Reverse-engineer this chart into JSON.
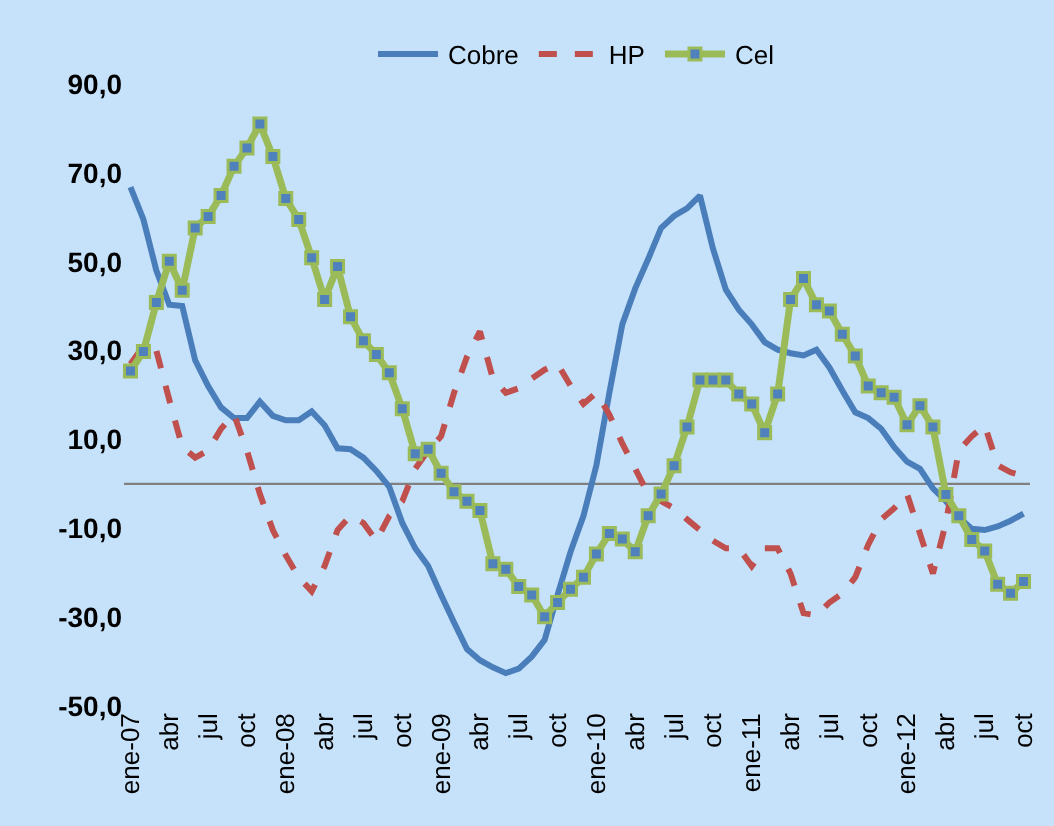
{
  "chart_data": {
    "type": "line",
    "categories": [
      "ene-07",
      null,
      null,
      "abr",
      null,
      null,
      "jul",
      null,
      null,
      "oct",
      null,
      null,
      "ene-08",
      null,
      null,
      "abr",
      null,
      null,
      "jul",
      null,
      null,
      "oct",
      null,
      null,
      "ene-09",
      null,
      null,
      "abr",
      null,
      null,
      "jul",
      null,
      null,
      "oct",
      null,
      null,
      "ene-10",
      null,
      null,
      "abr",
      null,
      null,
      "jul",
      null,
      null,
      "oct",
      null,
      null,
      "ene-11",
      null,
      null,
      "abr",
      null,
      null,
      "jul",
      null,
      null,
      "oct",
      null,
      null,
      "ene-12",
      null,
      null,
      "abr",
      null,
      null,
      "jul",
      null,
      null,
      "oct"
    ],
    "series": [
      {
        "name": "Cobre",
        "color": "#4a7ebb",
        "line_style": "solid",
        "marker": "none",
        "values": [
          66.8,
          59.5,
          48,
          40.3,
          40,
          27.8,
          22,
          17.2,
          14.8,
          14.8,
          18.5,
          15.3,
          14.3,
          14.3,
          16.3,
          13.2,
          8,
          7.8,
          5.9,
          2.9,
          -0.7,
          -8.8,
          -14.5,
          -18.5,
          -25,
          -31.2,
          -37.2,
          -39.7,
          -41.3,
          -42.6,
          -41.6,
          -38.9,
          -35.1,
          -25,
          -15.3,
          -7.2,
          4.2,
          20.5,
          35.9,
          44,
          50.6,
          57.6,
          60.3,
          62,
          64.9,
          53,
          43.7,
          39.2,
          35.9,
          31.9,
          30.2,
          29.4,
          28.9,
          30.2,
          26.2,
          21,
          16.1,
          14.8,
          12.4,
          8.3,
          5,
          3.4,
          -1,
          -3.9,
          -7.5,
          -10.1,
          -10.4,
          -9.6,
          -8.3,
          -6.7
        ]
      },
      {
        "name": "HP",
        "color": "#c0504d",
        "line_style": "dashed",
        "marker": "none",
        "values": [
          27,
          31,
          30,
          18.9,
          8.3,
          5.9,
          7.5,
          12.4,
          15.6,
          7.5,
          -2.3,
          -10.4,
          -16.1,
          -21,
          -24.2,
          -18.5,
          -10.4,
          -7.2,
          -8.8,
          -12.8,
          -7.2,
          -3.9,
          3.4,
          7.5,
          10.7,
          20.5,
          28.6,
          34.3,
          23.7,
          20.5,
          21.5,
          23.7,
          25.7,
          27,
          22.1,
          18,
          20.5,
          15.6,
          9.1,
          3.4,
          -2.3,
          -3.9,
          -5.5,
          -8,
          -10.4,
          -12.8,
          -14.5,
          -14.5,
          -18.5,
          -14.5,
          -14.5,
          -20.2,
          -29.1,
          -29.6,
          -26.7,
          -24.7,
          -21,
          -13.7,
          -8,
          -5.5,
          -2.3,
          -11.2,
          -20.2,
          -8.8,
          7.5,
          10.7,
          13.2,
          4.2,
          2.6,
          1.8
        ]
      },
      {
        "name": "Cel",
        "color": "#9bbb59",
        "line_style": "solid",
        "marker": "square",
        "values": [
          25.4,
          29.8,
          40.8,
          50.1,
          43.6,
          57.6,
          60.2,
          64.9,
          71.5,
          75.6,
          81,
          73.7,
          64.2,
          59.5,
          50.9,
          41.5,
          48.9,
          37.6,
          32.2,
          29.1,
          25,
          16.9,
          6.8,
          7.8,
          2.4,
          -1.8,
          -3.9,
          -6,
          -18,
          -19.2,
          -23.1,
          -25,
          -29.9,
          -26.7,
          -23.7,
          -21,
          -15.8,
          -11.2,
          -12.4,
          -15.3,
          -7.2,
          -2.3,
          4.1,
          12.8,
          23.4,
          23.4,
          23.4,
          20.2,
          18,
          11.5,
          20.2,
          41.5,
          46.2,
          40.3,
          38.9,
          33.7,
          28.8,
          22,
          20.5,
          19.5,
          13.3,
          17.6,
          12.8,
          -2.4,
          -7.2,
          -12.5,
          -15.1,
          -22.6,
          -24.6,
          -22
        ]
      }
    ],
    "ylim": [
      -50,
      90
    ],
    "yticks": [
      {
        "value": 90,
        "label": "90,0"
      },
      {
        "value": 70,
        "label": "70,0"
      },
      {
        "value": 50,
        "label": "50,0"
      },
      {
        "value": 30,
        "label": "30,0"
      },
      {
        "value": 10,
        "label": "10,0"
      },
      {
        "value": -10,
        "label": "-10,0"
      },
      {
        "value": -30,
        "label": "-30,0"
      },
      {
        "value": -50,
        "label": "-50,0"
      }
    ],
    "ref_lines": [
      {
        "axis": "y",
        "value": 0,
        "label": null,
        "color": "#808080"
      }
    ],
    "grid": false,
    "legend": "top"
  }
}
